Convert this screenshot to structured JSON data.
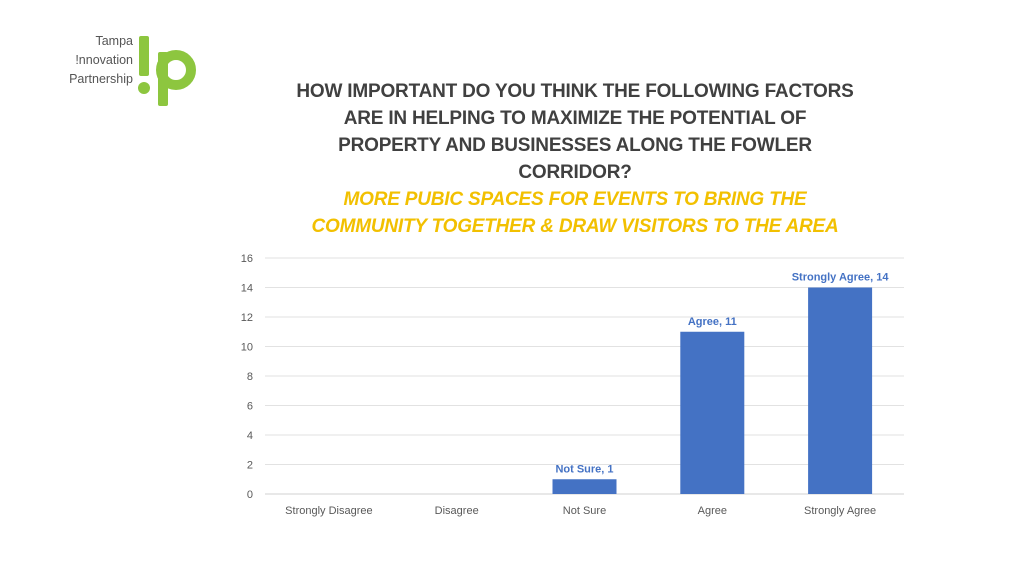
{
  "logo": {
    "lines": [
      "Tampa",
      "!nnovation",
      "Partnership"
    ],
    "mark": "!p",
    "color": "#8dc63f"
  },
  "chart_data": {
    "type": "bar",
    "title": "HOW IMPORTANT DO YOU THINK THE FOLLOWING FACTORS ARE IN HELPING TO MAXIMIZE THE POTENTIAL OF PROPERTY AND BUSINESSES ALONG THE FOWLER CORRIDOR?",
    "subtitle": "MORE PUBIC SPACES FOR EVENTS TO BRING THE COMMUNITY TOGETHER & DRAW VISITORS TO THE AREA",
    "categories": [
      "Strongly Disagree",
      "Disagree",
      "Not Sure",
      "Agree",
      "Strongly Agree"
    ],
    "values": [
      0,
      0,
      1,
      11,
      14
    ],
    "data_labels": [
      "",
      "",
      "Not Sure, 1",
      "Agree, 11",
      "Strongly Agree, 14"
    ],
    "ylim": [
      0,
      16
    ],
    "yticks": [
      0,
      2,
      4,
      6,
      8,
      10,
      12,
      14,
      16
    ],
    "grid": true,
    "bar_color": "#4472c4",
    "label_color": "#4472c4",
    "title_color": "#404040",
    "subtitle_color": "#f2c000"
  }
}
